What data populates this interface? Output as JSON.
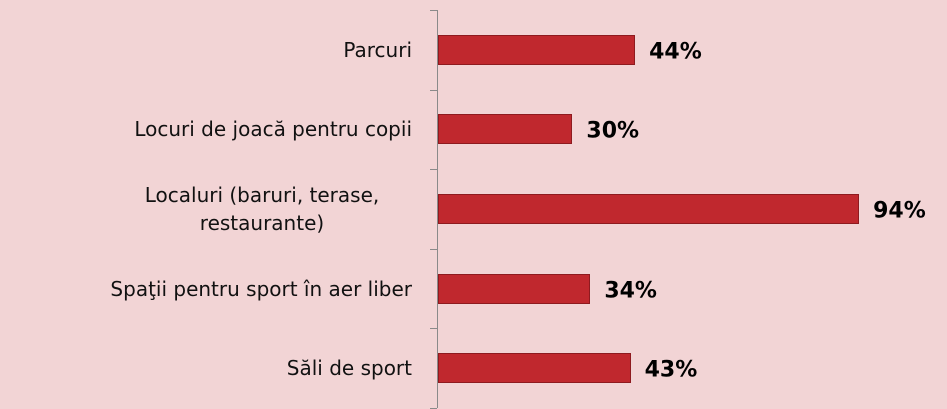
{
  "chart_data": {
    "type": "bar",
    "orientation": "horizontal",
    "categories": [
      "Parcuri",
      "Locuri de joacă pentru copii",
      "Localuri (baruri, terase, restaurante)",
      "Spaţii pentru sport în aer liber",
      "Săli de sport"
    ],
    "values": [
      44,
      30,
      94,
      34,
      43
    ],
    "value_labels": [
      "44%",
      "30%",
      "94%",
      "34%",
      "43%"
    ],
    "color": "#c0282e"
  }
}
